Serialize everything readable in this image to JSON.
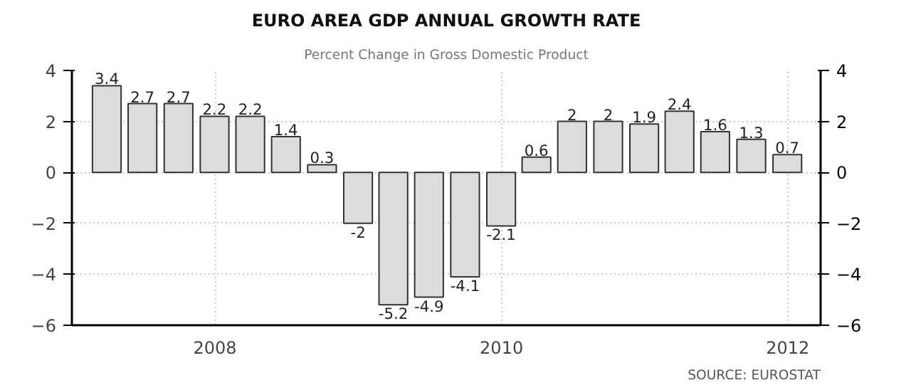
{
  "chart_data": {
    "type": "bar",
    "title": "EURO AREA GDP ANNUAL GROWTH RATE",
    "subtitle": "Percent Change in Gross Domestic Product",
    "x": [
      "2007-03-31",
      "2007-06-30",
      "2007-09-30",
      "2007-12-31",
      "2008-03-31",
      "2008-06-30",
      "2008-09-30",
      "2008-12-31",
      "2009-03-31",
      "2009-06-30",
      "2009-09-30",
      "2009-12-31",
      "2010-03-31",
      "2010-06-30",
      "2010-09-30",
      "2010-12-31",
      "2011-03-31",
      "2011-06-30",
      "2011-09-30",
      "2011-12-31"
    ],
    "values": [
      3.4,
      2.7,
      2.7,
      2.2,
      2.2,
      1.4,
      0.3,
      -2,
      -5.2,
      -4.9,
      -4.1,
      -2.1,
      0.6,
      2,
      2,
      1.9,
      2.4,
      1.6,
      1.3,
      0.7
    ],
    "color": "#dcdcdc",
    "data_labels": true,
    "xlim": [
      "2007-01-01",
      "2012-03-25"
    ],
    "xticks": [
      {
        "value": "2008-01-01",
        "label": "2008"
      },
      {
        "value": "2010-01-01",
        "label": "2010"
      },
      {
        "value": "2012-01-01",
        "label": "2012"
      }
    ],
    "ylim": [
      -6,
      4
    ],
    "yticks": [
      -6,
      -4,
      -2,
      0,
      2,
      4
    ],
    "y2lim": [
      -6,
      4
    ],
    "y2ticks": [
      -6,
      -4,
      -2,
      0,
      2,
      4
    ],
    "grid": true,
    "annotations": [
      "SOURCE: EUROSTAT"
    ]
  }
}
